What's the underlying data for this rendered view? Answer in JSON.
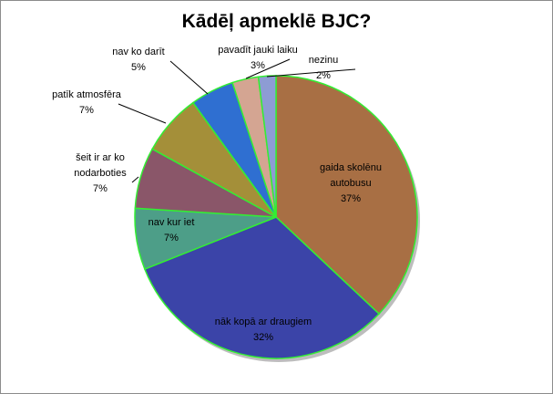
{
  "chart_data": {
    "type": "pie",
    "title": "Kādēļ apmeklē BJC?",
    "slices": [
      {
        "label_lines": [
          "gaida skolēnu",
          "autobusu"
        ],
        "pct_label": "37%",
        "value": 37,
        "color": "#a86f44"
      },
      {
        "label_lines": [
          "nāk kopā ar draugiem"
        ],
        "pct_label": "32%",
        "value": 32,
        "color": "#3b44a8"
      },
      {
        "label_lines": [
          "nav kur iet"
        ],
        "pct_label": "7%",
        "value": 7,
        "color": "#4d9e88"
      },
      {
        "label_lines": [
          "šeit ir ar ko",
          "nodarboties"
        ],
        "pct_label": "7%",
        "value": 7,
        "color": "#8a5669"
      },
      {
        "label_lines": [
          "patīk atmosfēra"
        ],
        "pct_label": "7%",
        "value": 7,
        "color": "#a48f39"
      },
      {
        "label_lines": [
          "nav ko darīt"
        ],
        "pct_label": "5%",
        "value": 5,
        "color": "#2f6fd1"
      },
      {
        "label_lines": [
          "pavadīt jauki laiku"
        ],
        "pct_label": "3%",
        "value": 3,
        "color": "#d4a592"
      },
      {
        "label_lines": [
          "nezinu"
        ],
        "pct_label": "2%",
        "value": 2,
        "color": "#8d9cd4"
      }
    ],
    "slice_outline_color": "#33ee33",
    "legend": "none"
  }
}
